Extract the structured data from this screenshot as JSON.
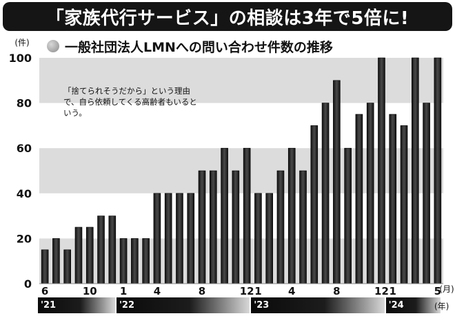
{
  "title": "「家族代行サービス」の相談は3年で5倍に!",
  "subtitle": "一般社団法人LMNへの問い合わせ件数の推移",
  "annotation": "「捨てられそうだから」という理由で、自ら依頼してくる高齢者もいるという。",
  "year_unit": "(年)",
  "years": [
    {
      "label": "'21",
      "start_index": 0,
      "end_index": 6
    },
    {
      "label": "'22",
      "start_index": 7,
      "end_index": 18
    },
    {
      "label": "'23",
      "start_index": 19,
      "end_index": 30
    },
    {
      "label": "'24",
      "start_index": 31,
      "end_index": 35
    }
  ],
  "colors": {
    "bar": "#2a2a2a",
    "band": "#dcdcdc",
    "title_bg": "#151515"
  },
  "chart_data": {
    "type": "bar",
    "ylabel": "(件)",
    "xlabel": "(月)",
    "ylim": [
      0,
      100
    ],
    "yticks": [
      0,
      20,
      40,
      60,
      80,
      100
    ],
    "grid": "alternating horizontal bands",
    "categories": [
      "6",
      "7",
      "8",
      "9",
      "10",
      "11",
      "12",
      "1",
      "2",
      "3",
      "4",
      "5",
      "6",
      "7",
      "8",
      "9",
      "10",
      "11",
      "12",
      "1",
      "2",
      "3",
      "4",
      "5",
      "6",
      "7",
      "8",
      "9",
      "10",
      "11",
      "12",
      "1",
      "2",
      "3",
      "4",
      "5"
    ],
    "tick_labels": [
      "6",
      "",
      "",
      "",
      "10",
      "",
      "",
      "1",
      "",
      "",
      "4",
      "",
      "",
      "",
      "8",
      "",
      "",
      "",
      "12",
      "1",
      "",
      "",
      "4",
      "",
      "",
      "",
      "8",
      "",
      "",
      "",
      "12",
      "1",
      "",
      "",
      "",
      "5"
    ],
    "values": [
      15,
      20,
      15,
      25,
      25,
      30,
      30,
      20,
      20,
      20,
      40,
      40,
      40,
      40,
      50,
      50,
      60,
      50,
      60,
      40,
      40,
      50,
      60,
      50,
      70,
      80,
      90,
      60,
      75,
      80,
      100,
      75,
      70,
      100,
      80,
      100
    ]
  }
}
